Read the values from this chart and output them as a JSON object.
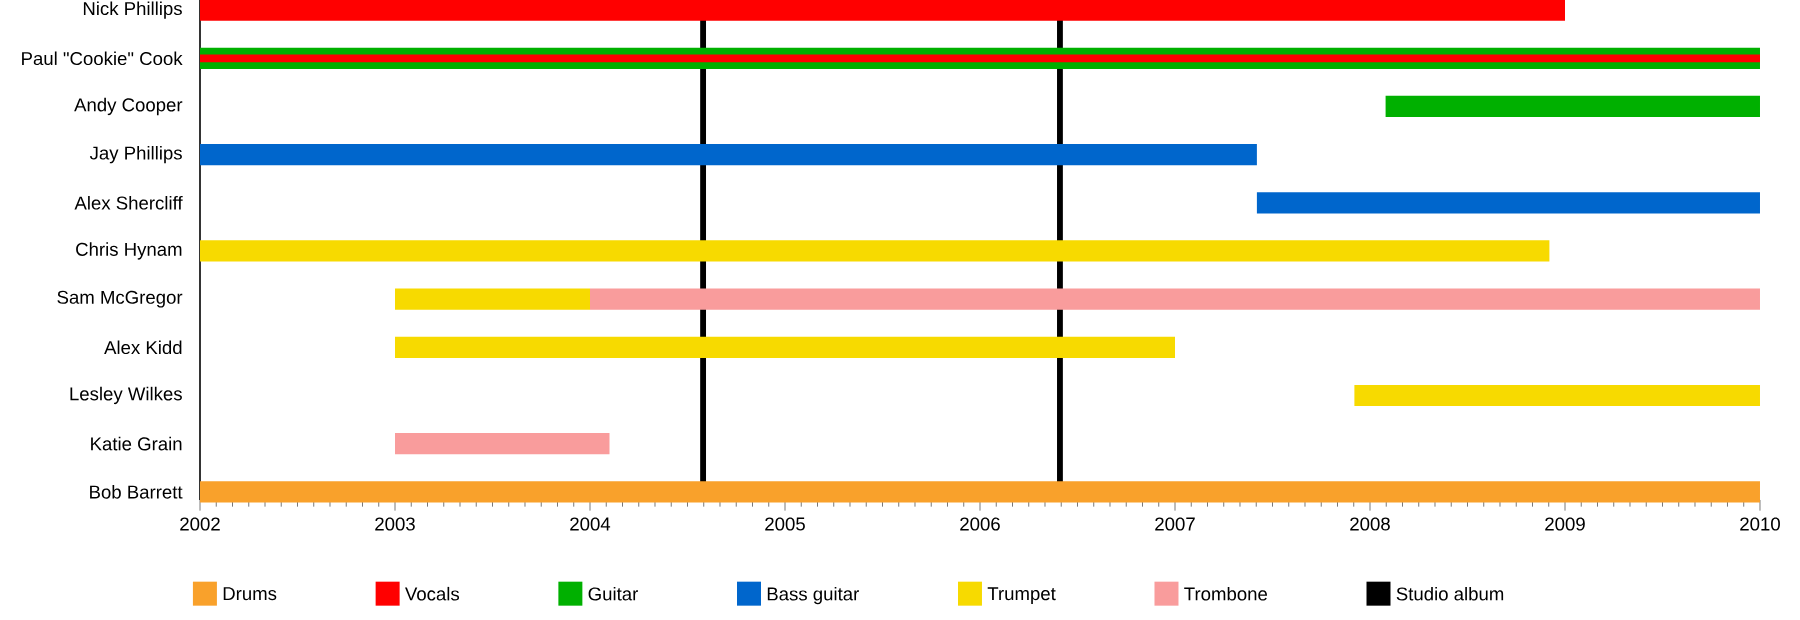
{
  "chart_data": {
    "type": "bar",
    "orientation": "horizontal",
    "categories": [
      "Nick Phillips",
      "Paul \"Cookie\" Cook",
      "Andy Cooper",
      "Jay Phillips",
      "Alex Shercliff",
      "Chris Hynam",
      "Sam McGregor",
      "Alex Kidd",
      "Lesley Wilkes",
      "Katie Grain",
      "Bob Barrett"
    ],
    "series": [
      {
        "name": "Drums",
        "color": "#f9a12b",
        "base": [
          null,
          null,
          null,
          null,
          null,
          null,
          null,
          null,
          null,
          null,
          2002
        ],
        "values": [
          null,
          null,
          null,
          null,
          null,
          null,
          null,
          null,
          null,
          null,
          8
        ]
      },
      {
        "name": "Vocals",
        "color": "#ff0000",
        "base": [
          2002,
          2002,
          null,
          null,
          null,
          null,
          null,
          null,
          null,
          null,
          null
        ],
        "values": [
          7,
          8,
          null,
          null,
          null,
          null,
          null,
          null,
          null,
          null,
          null
        ]
      },
      {
        "name": "Guitar",
        "color": "#00b000",
        "base": [
          null,
          2002,
          2008.08,
          null,
          null,
          null,
          null,
          null,
          null,
          null,
          null
        ],
        "values": [
          null,
          8,
          1.92,
          null,
          null,
          null,
          null,
          null,
          null,
          null,
          null
        ]
      },
      {
        "name": "Bass guitar",
        "color": "#0066cc",
        "base": [
          null,
          null,
          null,
          2002,
          2007.42,
          null,
          null,
          null,
          null,
          null,
          null
        ],
        "values": [
          null,
          null,
          null,
          5.42,
          2.58,
          null,
          null,
          null,
          null,
          null,
          null
        ]
      },
      {
        "name": "Trumpet",
        "color": "#f7da00",
        "base": [
          null,
          null,
          null,
          null,
          null,
          2002,
          2003,
          2003,
          2007.92,
          null,
          null
        ],
        "values": [
          null,
          null,
          null,
          null,
          null,
          6.92,
          1,
          4,
          2.08,
          null,
          null
        ]
      },
      {
        "name": "Trombone",
        "color": "#f99c9c",
        "base": [
          null,
          null,
          null,
          null,
          null,
          null,
          2004,
          null,
          null,
          2003,
          null
        ],
        "values": [
          null,
          null,
          null,
          null,
          null,
          null,
          6,
          null,
          null,
          1.1,
          null
        ]
      }
    ],
    "ref_lines": [
      {
        "axis": "x",
        "value": 2004.58,
        "label": "Studio album",
        "color": "#000000"
      },
      {
        "axis": "x",
        "value": 2006.41,
        "color": "#000000"
      }
    ],
    "xlim": [
      2002,
      2010
    ],
    "xticks": [
      2002,
      2003,
      2004,
      2005,
      2006,
      2007,
      2008,
      2009,
      2010
    ],
    "grid": false,
    "legend": "bottom"
  }
}
